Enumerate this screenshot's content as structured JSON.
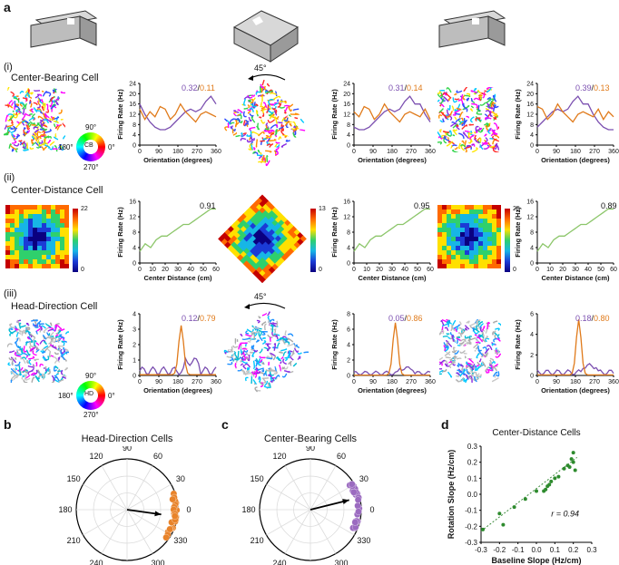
{
  "figure": {
    "panel_labels": {
      "a": "a",
      "b": "b",
      "c": "c",
      "d": "d"
    },
    "rows": [
      {
        "roman": "(i)",
        "title": "Center-Bearing Cell",
        "value_pairs": [
          [
            "0.32",
            "0.11"
          ],
          [
            "0.31",
            "0.14"
          ],
          [
            "0.39",
            "0.13"
          ]
        ],
        "rotation": "45°"
      },
      {
        "roman": "(ii)",
        "title": "Center-Distance Cell",
        "values": [
          "0.91",
          "0.95",
          "0.89"
        ],
        "colorbar_max": [
          "22",
          "13",
          "25"
        ],
        "colorbar_min": "0"
      },
      {
        "roman": "(iii)",
        "title": "Head-Direction Cell",
        "value_pairs": [
          [
            "0.12",
            "0.79"
          ],
          [
            "0.05",
            "0.86"
          ],
          [
            "0.18",
            "0.80"
          ]
        ],
        "rotation": "45°"
      }
    ],
    "separator": "/",
    "wheels": [
      {
        "label": "CB",
        "top": "90°",
        "left": "180°",
        "right": "0°",
        "bottom": "270°"
      },
      {
        "label": "HD",
        "top": "90°",
        "left": "180°",
        "right": "0°",
        "bottom": "270°"
      }
    ],
    "orientation_axis": {
      "xlabel": "Orientation (degrees)",
      "ylabel": "Firing Rate (Hz)",
      "xticks": [
        "0",
        "90",
        "180",
        "270",
        "360"
      ]
    },
    "distance_axis": {
      "xlabel": "Center Distance (cm)",
      "ylabel": "Firing Rate (Hz)",
      "xticks": [
        "0",
        "10",
        "20",
        "30",
        "40",
        "50",
        "60"
      ],
      "yticks": [
        "0",
        "4",
        "8",
        "12",
        "16"
      ]
    },
    "cb_yticks": [
      "0",
      "4",
      "8",
      "12",
      "16",
      "20",
      "24"
    ],
    "hd_yticks": [
      [
        "0",
        "1",
        "2",
        "3",
        "4"
      ],
      [
        "0",
        "2",
        "4",
        "6",
        "8"
      ],
      [
        "0",
        "2",
        "4",
        "6"
      ]
    ],
    "polar_b": {
      "title": "Head-Direction Cells",
      "labels": [
        "90",
        "60",
        "30",
        "0",
        "330",
        "300",
        "270",
        "240",
        "210",
        "180",
        "150",
        "120"
      ]
    },
    "polar_c": {
      "title": "Center-Bearing Cells",
      "labels": [
        "90",
        "60",
        "30",
        "0",
        "330",
        "300",
        "270",
        "240",
        "210",
        "180",
        "150",
        "120"
      ]
    }
  },
  "chart_data": [
    {
      "type": "line",
      "title": "Center-Bearing Cell (baseline)",
      "xlabel": "Orientation (degrees)",
      "ylabel": "Firing Rate (Hz)",
      "xlim": [
        0,
        360
      ],
      "ylim": [
        0,
        24
      ],
      "series": [
        {
          "name": "purple",
          "values": [
            16,
            12,
            9,
            7,
            6,
            6,
            7,
            9,
            11,
            13,
            14,
            13,
            14,
            17,
            19,
            16
          ]
        },
        {
          "name": "orange",
          "values": [
            14,
            10,
            13,
            11,
            15,
            14,
            10,
            12,
            16,
            13,
            11,
            9,
            12,
            13,
            12,
            11
          ]
        }
      ]
    },
    {
      "type": "line",
      "title": "Center-Distance Cell",
      "xlabel": "Center Distance (cm)",
      "ylabel": "Firing Rate (Hz)",
      "xlim": [
        0,
        60
      ],
      "ylim": [
        0,
        16
      ],
      "series": [
        {
          "name": "green",
          "values": [
            3,
            5,
            4,
            6,
            7,
            7,
            8,
            9,
            10,
            10,
            11,
            12,
            13,
            14,
            14
          ]
        }
      ]
    },
    {
      "type": "scatter",
      "title": "Center-Distance Cells",
      "xlabel": "Baseline Slope (Hz/cm)",
      "ylabel": "Rotation Slope (Hz/cm)",
      "xlim": [
        -0.3,
        0.3
      ],
      "ylim": [
        -0.3,
        0.3
      ],
      "annotation": "r = 0.94",
      "xticks": [
        "-0.3",
        "-0.2",
        "-0.1",
        "0.0",
        "0.1",
        "0.2",
        "0.3"
      ],
      "yticks": [
        "0.3",
        "0.2",
        "0.1",
        "0.0",
        "-0.1",
        "-0.2",
        "-0.3"
      ],
      "x": [
        -0.29,
        -0.2,
        -0.18,
        -0.12,
        -0.06,
        0.0,
        0.04,
        0.05,
        0.06,
        0.07,
        0.08,
        0.1,
        0.12,
        0.15,
        0.17,
        0.18,
        0.19,
        0.2,
        0.21,
        0.2
      ],
      "y": [
        -0.22,
        -0.12,
        -0.19,
        -0.08,
        -0.03,
        0.02,
        0.02,
        0.03,
        0.05,
        0.06,
        0.08,
        0.1,
        0.11,
        0.16,
        0.18,
        0.17,
        0.22,
        0.2,
        0.15,
        0.26
      ]
    }
  ]
}
